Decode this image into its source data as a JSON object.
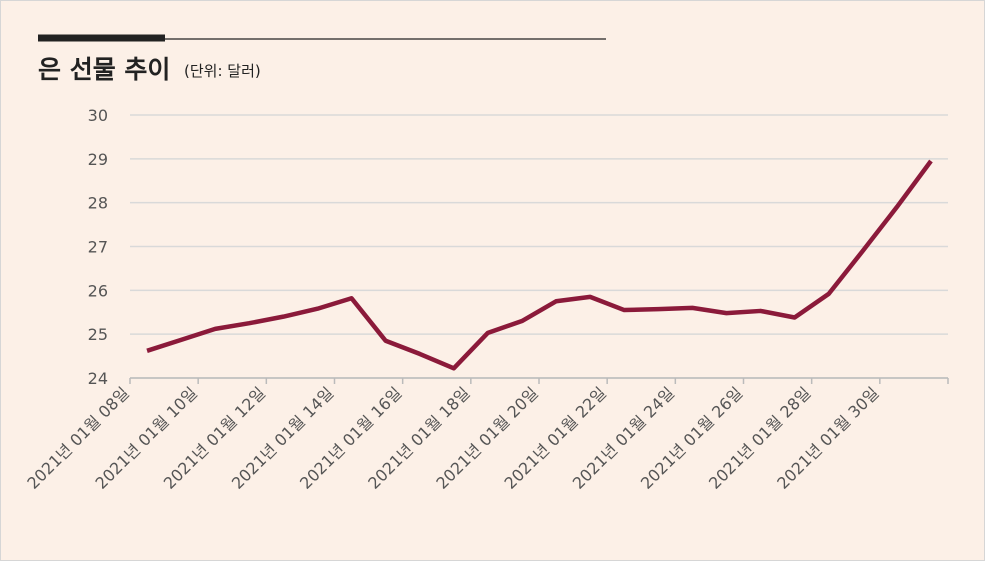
{
  "chart_data": {
    "type": "line",
    "title": "은 선물 추이",
    "subtitle": "(단위: 달러)",
    "categories": [
      "2021년 01월 08일",
      null,
      "2021년 01월 10일",
      null,
      "2021년 01월 12일",
      null,
      "2021년 01월 14일",
      null,
      "2021년 01월 16일",
      null,
      "2021년 01월 18일",
      null,
      "2021년 01월 20일",
      null,
      "2021년 01월 22일",
      null,
      "2021년 01월 24일",
      null,
      "2021년 01월 26일",
      null,
      "2021년 01월 28일",
      null,
      "2021년 01월 30일",
      null
    ],
    "series": [
      {
        "color": "#8b1a3a",
        "values": [
          24.62,
          24.87,
          25.12,
          25.25,
          25.4,
          25.58,
          25.82,
          24.85,
          24.55,
          24.22,
          25.03,
          25.3,
          25.75,
          25.85,
          25.55,
          25.57,
          25.6,
          25.48,
          25.53,
          25.38,
          25.92,
          26.9,
          27.9,
          28.95
        ]
      }
    ],
    "ylim": [
      24,
      30
    ],
    "yticks": [
      24,
      25,
      26,
      27,
      28,
      29,
      30
    ],
    "grid": true
  }
}
